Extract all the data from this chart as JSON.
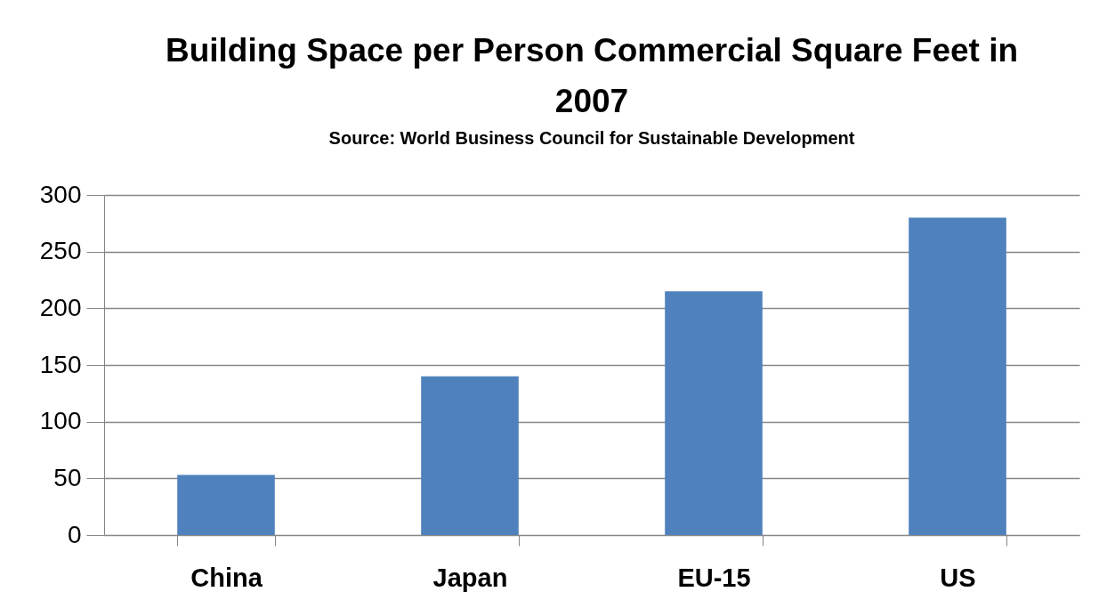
{
  "chart_data": {
    "type": "bar",
    "title": "Building Space per Person Commercial Square Feet in 2007",
    "subtitle": "Source: World Business Council for Sustainable Development",
    "categories": [
      "China",
      "Japan",
      "EU-15",
      "US"
    ],
    "values": [
      53,
      140,
      215,
      280
    ],
    "color": "#4f81bd",
    "ylim": [
      0,
      300
    ],
    "yticks": [
      0,
      50,
      100,
      150,
      200,
      250,
      300
    ],
    "grid": "y"
  }
}
